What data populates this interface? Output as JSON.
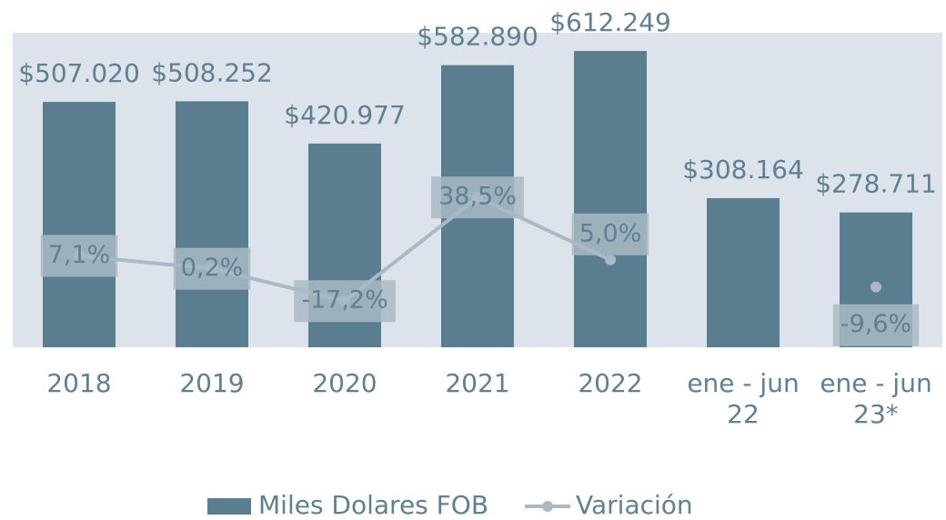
{
  "chart_data": {
    "type": "bar_line",
    "categories": [
      "2018",
      "2019",
      "2020",
      "2021",
      "2022",
      "ene - jun 22",
      "ene - jun 23*"
    ],
    "series": [
      {
        "name": "Miles Dolares FOB",
        "type": "bar",
        "color": "#5b7d90",
        "values": [
          507020,
          508252,
          420977,
          582890,
          612249,
          308164,
          278711
        ],
        "value_labels": [
          "$507.020",
          "$508.252",
          "$420.977",
          "$582.890",
          "$612.249",
          "$308.164",
          "$278.711"
        ]
      },
      {
        "name": "Variación",
        "type": "line",
        "axis": "y2",
        "color": "#a9bac6",
        "values": [
          7.1,
          0.2,
          -17.2,
          38.5,
          5.0,
          null,
          -9.6
        ],
        "value_labels": [
          "7,1%",
          "0,2%",
          "-17,2%",
          "38,5%",
          "5,0%",
          null,
          "-9,6%"
        ]
      }
    ],
    "ylim": [
      0,
      650000
    ],
    "y2lim": [
      -42,
      127
    ],
    "legend": "bottom"
  }
}
